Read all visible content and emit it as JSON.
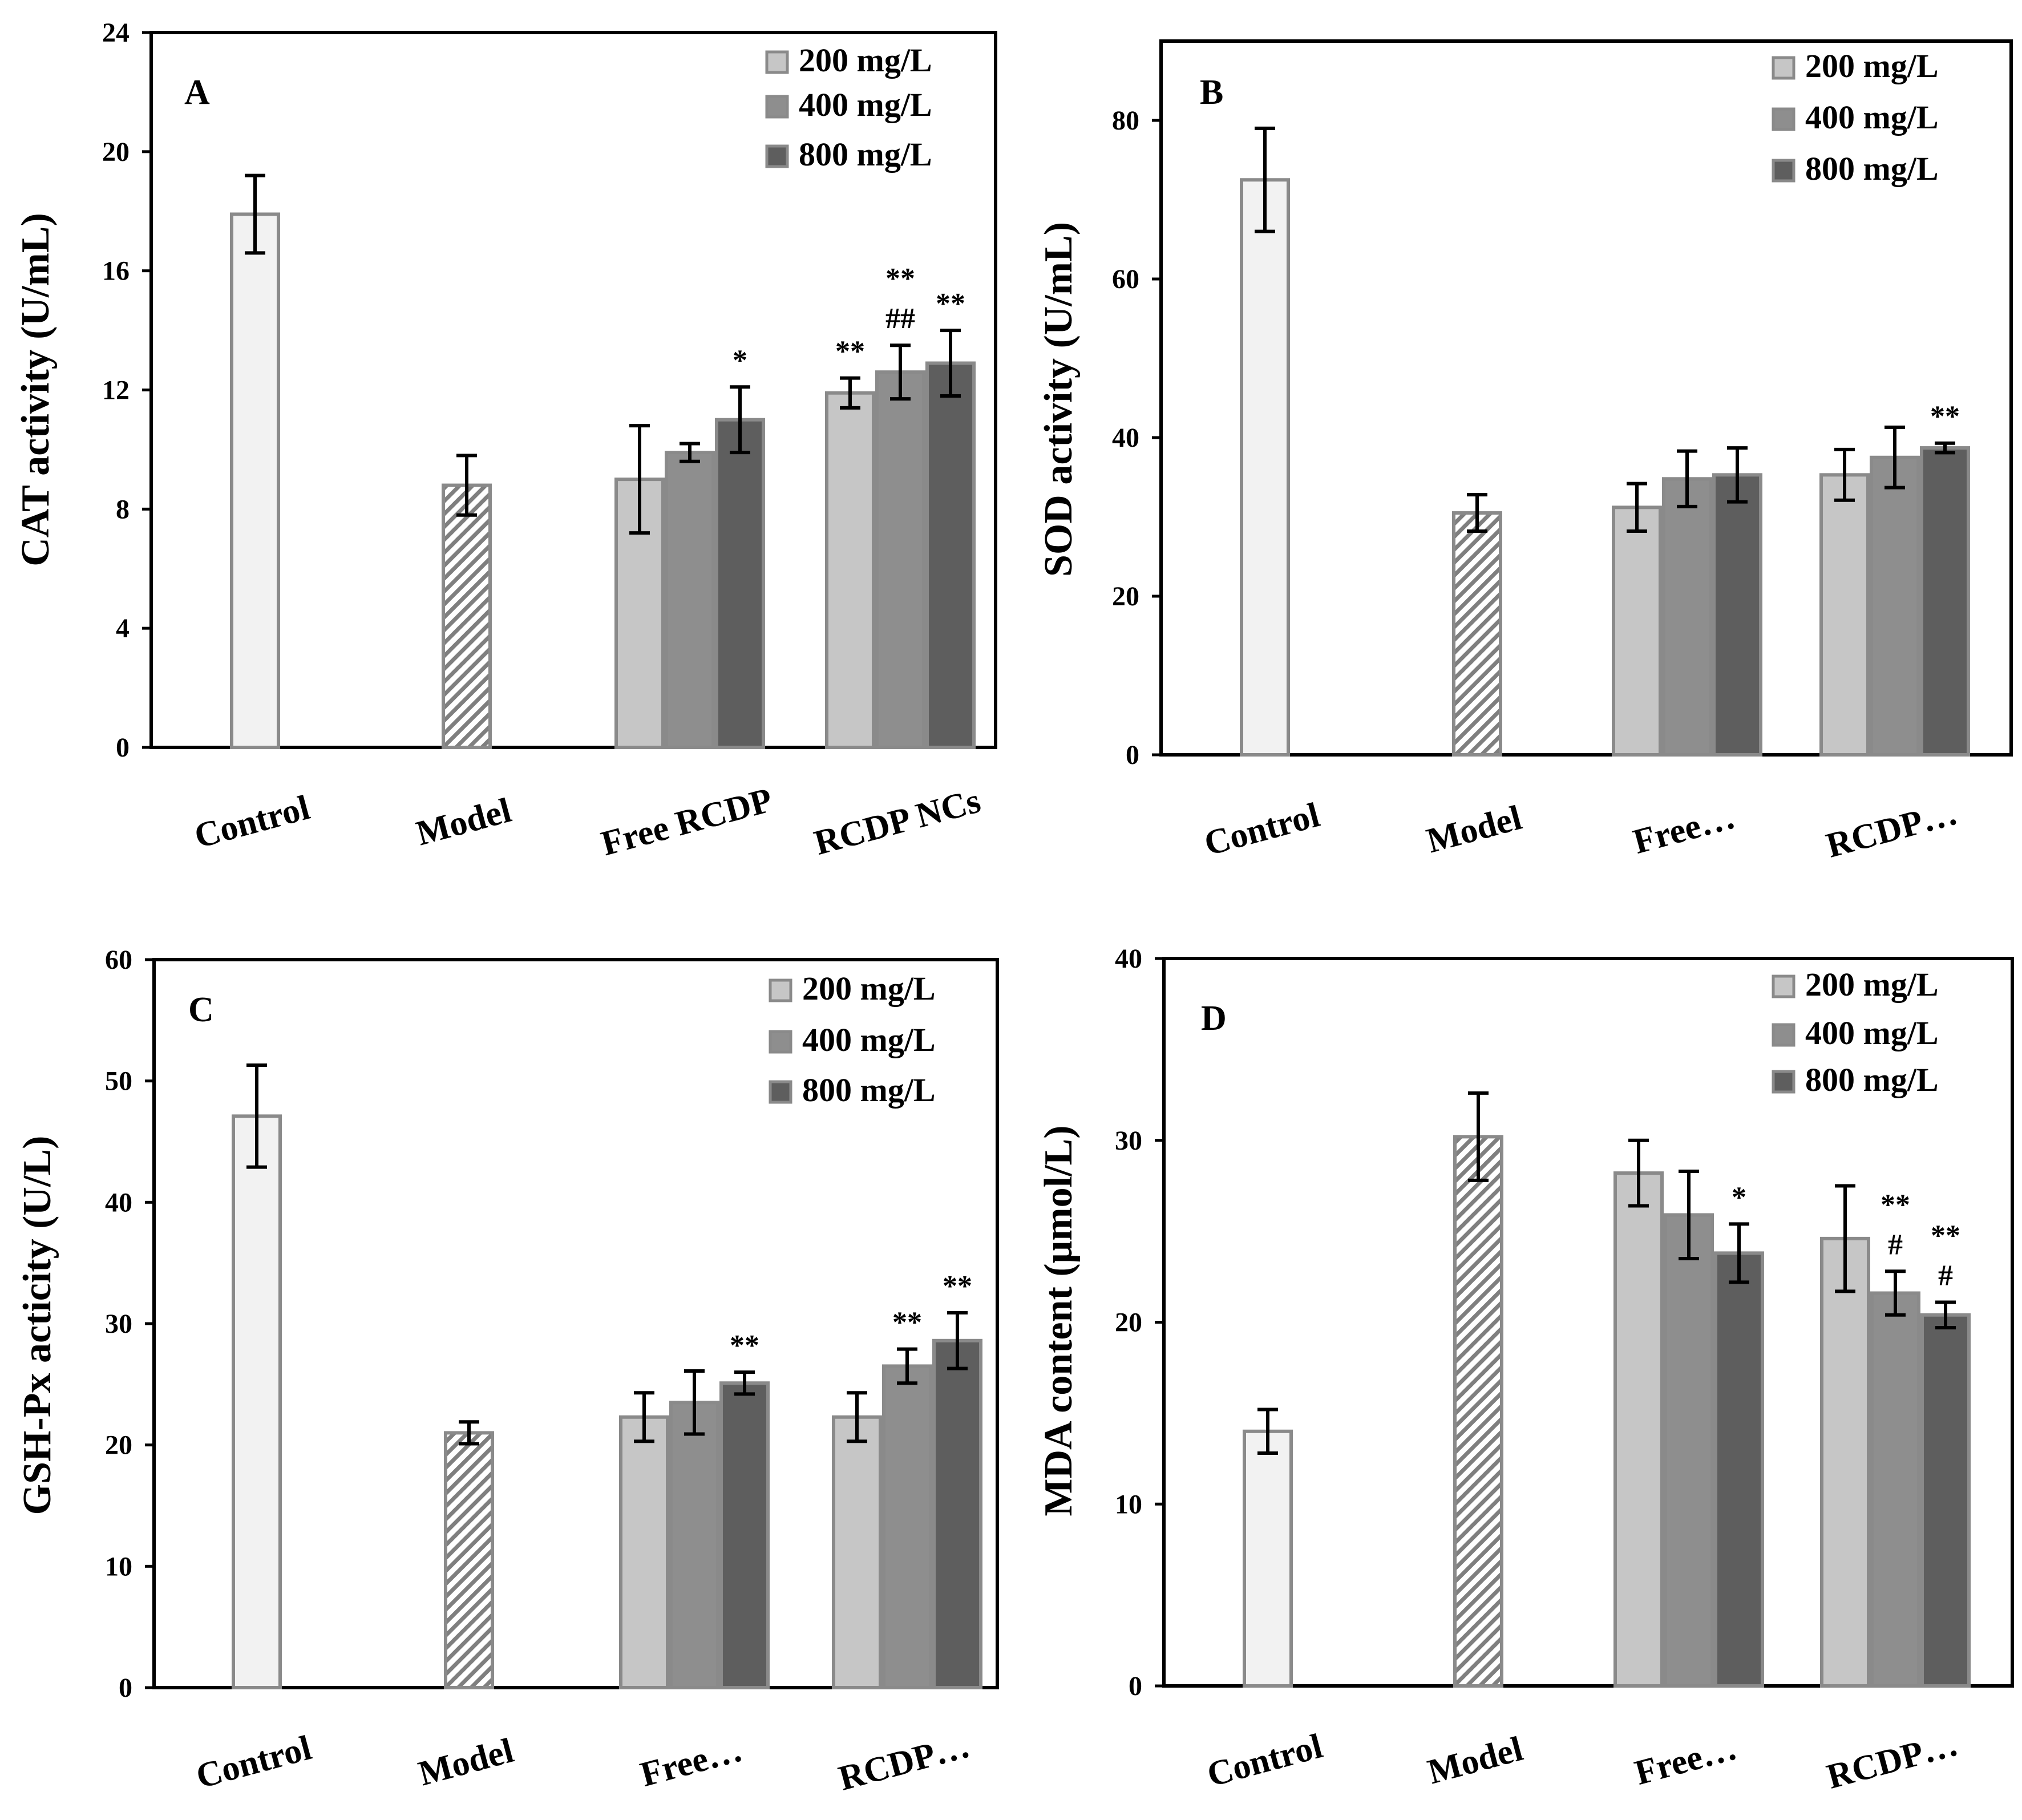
{
  "chart_data": [
    {
      "panel": "A",
      "type": "bar",
      "ylabel": "CAT activity (U/mL)",
      "ylim": [
        0,
        24
      ],
      "yticks": [
        "0",
        "4",
        "8",
        "12",
        "16",
        "20",
        "24"
      ],
      "categories": [
        "Control",
        "Model",
        "Free RCDP",
        "RCDP NCs"
      ],
      "legend": [
        "200 mg/L",
        "400 mg/L",
        "800 mg/L"
      ],
      "legend_position": "top-right",
      "groups": [
        {
          "bars": [
            {
              "value": 17.9,
              "error": 1.3,
              "style": "control",
              "label": ""
            }
          ]
        },
        {
          "bars": [
            {
              "value": 8.8,
              "error": 1.0,
              "style": "model",
              "label": ""
            }
          ]
        },
        {
          "bars": [
            {
              "value": 9.0,
              "error": 1.8,
              "style": "d200",
              "label": ""
            },
            {
              "value": 9.9,
              "error": 0.3,
              "style": "d400",
              "label": ""
            },
            {
              "value": 11.0,
              "error": 1.1,
              "style": "d800",
              "label": "*"
            }
          ]
        },
        {
          "bars": [
            {
              "value": 11.9,
              "error": 0.5,
              "style": "d200",
              "label": "**"
            },
            {
              "value": 12.6,
              "error": 0.9,
              "style": "d400",
              "label": "**\n##"
            },
            {
              "value": 12.9,
              "error": 1.1,
              "style": "d800",
              "label": "**"
            }
          ]
        }
      ]
    },
    {
      "panel": "B",
      "type": "bar",
      "ylabel": "SOD activity (U/mL)",
      "ylim": [
        0,
        90
      ],
      "yticks": [
        "0",
        "20",
        "40",
        "60",
        "80"
      ],
      "categories": [
        "Control",
        "Model",
        "Free…",
        "RCDP…"
      ],
      "legend": [
        "200 mg/L",
        "400 mg/L",
        "800 mg/L"
      ],
      "legend_position": "top-right",
      "groups": [
        {
          "bars": [
            {
              "value": 72.5,
              "error": 6.5,
              "style": "control",
              "label": ""
            }
          ]
        },
        {
          "bars": [
            {
              "value": 30.5,
              "error": 2.3,
              "style": "model",
              "label": ""
            }
          ]
        },
        {
          "bars": [
            {
              "value": 31.2,
              "error": 3.0,
              "style": "d200",
              "label": ""
            },
            {
              "value": 34.8,
              "error": 3.5,
              "style": "d400",
              "label": ""
            },
            {
              "value": 35.3,
              "error": 3.4,
              "style": "d800",
              "label": ""
            }
          ]
        },
        {
          "bars": [
            {
              "value": 35.3,
              "error": 3.2,
              "style": "d200",
              "label": ""
            },
            {
              "value": 37.5,
              "error": 3.8,
              "style": "d400",
              "label": ""
            },
            {
              "value": 38.7,
              "error": 0.6,
              "style": "d800",
              "label": "**"
            }
          ]
        }
      ]
    },
    {
      "panel": "C",
      "type": "bar",
      "ylabel": "GSH-Px acticity (U/L)",
      "ylim": [
        0,
        60
      ],
      "yticks": [
        "0",
        "10",
        "20",
        "30",
        "40",
        "50",
        "60"
      ],
      "categories": [
        "Control",
        "Model",
        "Free…",
        "RCDP…"
      ],
      "legend": [
        "200 mg/L",
        "400 mg/L",
        "800 mg/L"
      ],
      "legend_position": "top-right",
      "groups": [
        {
          "bars": [
            {
              "value": 47.1,
              "error": 4.2,
              "style": "control",
              "label": ""
            }
          ]
        },
        {
          "bars": [
            {
              "value": 21.0,
              "error": 0.9,
              "style": "model",
              "label": ""
            }
          ]
        },
        {
          "bars": [
            {
              "value": 22.3,
              "error": 2.0,
              "style": "d200",
              "label": ""
            },
            {
              "value": 23.5,
              "error": 2.6,
              "style": "d400",
              "label": ""
            },
            {
              "value": 25.1,
              "error": 0.9,
              "style": "d800",
              "label": "**"
            }
          ]
        },
        {
          "bars": [
            {
              "value": 22.3,
              "error": 2.0,
              "style": "d200",
              "label": ""
            },
            {
              "value": 26.5,
              "error": 1.4,
              "style": "d400",
              "label": "**"
            },
            {
              "value": 28.6,
              "error": 2.3,
              "style": "d800",
              "label": "**"
            }
          ]
        }
      ]
    },
    {
      "panel": "D",
      "type": "bar",
      "ylabel": "MDA content (μmol/L)",
      "ylim": [
        0,
        40
      ],
      "yticks": [
        "0",
        "10",
        "20",
        "30",
        "40"
      ],
      "categories": [
        "Control",
        "Model",
        "Free…",
        "RCDP…"
      ],
      "legend": [
        "200 mg/L",
        "400 mg/L",
        "800 mg/L"
      ],
      "legend_position": "top-right",
      "groups": [
        {
          "bars": [
            {
              "value": 14.0,
              "error": 1.2,
              "style": "control",
              "label": ""
            }
          ]
        },
        {
          "bars": [
            {
              "value": 30.2,
              "error": 2.4,
              "style": "model",
              "label": ""
            }
          ]
        },
        {
          "bars": [
            {
              "value": 28.2,
              "error": 1.8,
              "style": "d200",
              "label": ""
            },
            {
              "value": 25.9,
              "error": 2.4,
              "style": "d400",
              "label": ""
            },
            {
              "value": 23.8,
              "error": 1.6,
              "style": "d800",
              "label": "*"
            }
          ]
        },
        {
          "bars": [
            {
              "value": 24.6,
              "error": 2.9,
              "style": "d200",
              "label": ""
            },
            {
              "value": 21.6,
              "error": 1.2,
              "style": "d400",
              "label": "**\n#"
            },
            {
              "value": 20.4,
              "error": 0.7,
              "style": "d800",
              "label": "**\n#"
            }
          ]
        }
      ]
    }
  ],
  "colors": {
    "control": "#f2f2f2",
    "model_hatch": "#7f7f7f",
    "d200": "#c6c6c6",
    "d400": "#8e8e8e",
    "d800": "#5e5e5e",
    "bar_edge": "#8a8a8a",
    "axis": "#000000",
    "significance_gray": "#808080"
  }
}
